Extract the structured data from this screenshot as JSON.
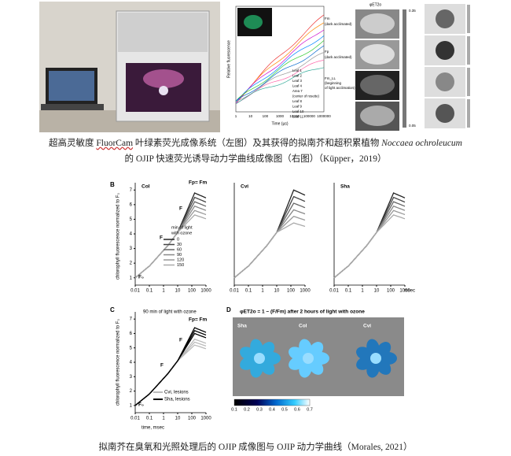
{
  "top_figure": {
    "chart": {
      "y_label": "Relative fluorescence",
      "x_label": "Time (µs)",
      "x_ticks": [
        "1",
        "10",
        "100",
        "1000",
        "10000",
        "100000",
        "1000000"
      ],
      "annotations": [
        "Fm",
        "(dark acclimated)",
        "Fp",
        "(dark acclimated)",
        "Fm_LL",
        "(beginning",
        "of light acclimation)"
      ],
      "legend": [
        "Leaf 1",
        "Leaf 2",
        "Leaf 3",
        "Leaf 4",
        "Area 7",
        "(center of rosette)",
        "Leaf 8",
        "Leaf 9",
        "Leaf 10",
        "Leaf 11"
      ]
    },
    "images": {
      "header": "φET2o",
      "scale_top": "0.35",
      "scale_bottom": "0.05"
    }
  },
  "caption_top": {
    "a": "超高灵敏度 ",
    "b": "FluorCam",
    "c": " 叶绿素荧光成像系统（左图）及其获得的拟南芥和超积累植物 ",
    "d": "Noccaea ochroleucum",
    "e": " 的 OJIP 快速荧光诱导动力学曲线成像图（右图）（Küpper，2019）"
  },
  "panel_b": {
    "label": "B",
    "y_label": "chlorophyll fluorescence normalized to F₀",
    "x_label": "msec",
    "y_ticks": [
      "1",
      "2",
      "3",
      "4",
      "5",
      "6",
      "7"
    ],
    "x_ticks": [
      "0.01",
      "0.1",
      "1",
      "10",
      "100",
      "1000"
    ],
    "plots": [
      "Col",
      "Cvi",
      "Sha"
    ],
    "annotations": [
      "F₀",
      "F",
      "F",
      "Fp= Fm"
    ],
    "legend_title": [
      "min of light",
      "with ozone"
    ],
    "legend": [
      "0",
      "30",
      "60",
      "90",
      "120",
      "150"
    ]
  },
  "panel_c": {
    "label": "C",
    "title": "90 min of light with ozone",
    "y_label": "chlorophyll fluorescence normalized to F₀",
    "x_label": "time, msec",
    "y_ticks": [
      "1",
      "2",
      "3",
      "4",
      "5",
      "6",
      "7"
    ],
    "x_ticks": [
      "0.01",
      "0.1",
      "1",
      "10",
      "100",
      "1000"
    ],
    "annotations": [
      "F₀",
      "F",
      "F",
      "Fp= Fm"
    ],
    "legend": [
      "Cvi, lesions",
      "Sha, lesions"
    ]
  },
  "panel_d": {
    "label": "D",
    "title": "φET2o = 1 − (F/Fm) after 2 hours of light with ozone",
    "plants": [
      "Sha",
      "Col",
      "Cvi"
    ],
    "scale_ticks": [
      "0.1",
      "0.2",
      "0.3",
      "0.4",
      "0.5",
      "0.6",
      "0.7"
    ]
  },
  "caption_bottom": "拟南芥在臭氧和光照处理后的 OJIP 成像图与 OJIP 动力学曲线（Morales, 2021）"
}
